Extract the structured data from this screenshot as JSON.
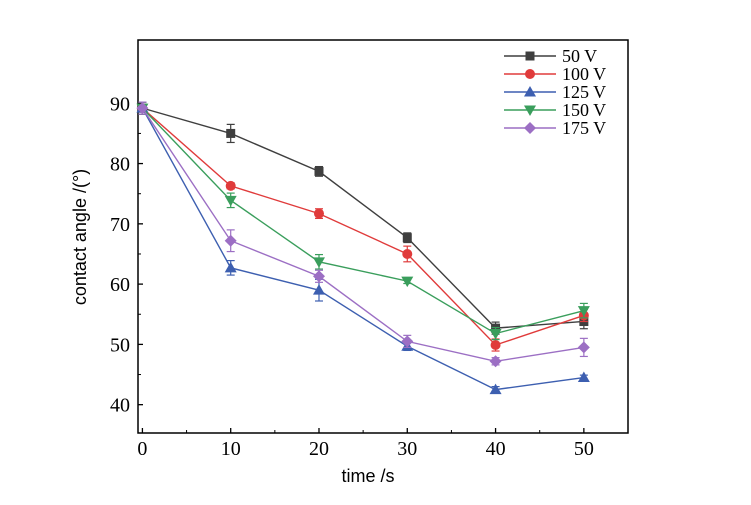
{
  "chart_data": {
    "type": "line",
    "title": "",
    "xlabel": "time /s",
    "ylabel": "contact angle /(°)",
    "xlim": [
      -0.5,
      55
    ],
    "ylim": [
      35.3,
      100.5
    ],
    "x": [
      0,
      10,
      20,
      30,
      40,
      50
    ],
    "xticks": [
      0,
      10,
      20,
      30,
      40,
      50
    ],
    "yticks": [
      40,
      50,
      60,
      70,
      80,
      90
    ],
    "grid": false,
    "legend": "top-right",
    "series": [
      {
        "name": "50 V",
        "color": "#3f3f3f",
        "marker": "square",
        "values": [
          89.2,
          85.0,
          78.7,
          67.7,
          52.7,
          53.8
        ],
        "errors": [
          1.0,
          1.5,
          0.8,
          0.8,
          1.0,
          1.2
        ]
      },
      {
        "name": "100 V",
        "color": "#e03b3b",
        "marker": "circle",
        "values": [
          89.2,
          76.3,
          71.7,
          65.0,
          49.9,
          54.8
        ],
        "errors": [
          1.0,
          0.5,
          0.8,
          1.3,
          1.0,
          1.0
        ]
      },
      {
        "name": "125 V",
        "color": "#3d5fb0",
        "marker": "triangle-up",
        "values": [
          89.2,
          62.7,
          59.0,
          49.7,
          42.5,
          44.5
        ],
        "errors": [
          1.0,
          1.2,
          1.8,
          0.7,
          0.5,
          0.4
        ]
      },
      {
        "name": "150 V",
        "color": "#3a9e5c",
        "marker": "triangle-down",
        "values": [
          89.2,
          73.9,
          63.7,
          60.5,
          51.8,
          55.6
        ],
        "errors": [
          1.0,
          1.2,
          1.2,
          0.4,
          1.0,
          1.2
        ]
      },
      {
        "name": "175 V",
        "color": "#9c6fc4",
        "marker": "diamond",
        "values": [
          89.2,
          67.2,
          61.3,
          50.5,
          47.2,
          49.5
        ],
        "errors": [
          1.0,
          1.8,
          1.0,
          1.0,
          0.6,
          1.5
        ]
      }
    ]
  }
}
